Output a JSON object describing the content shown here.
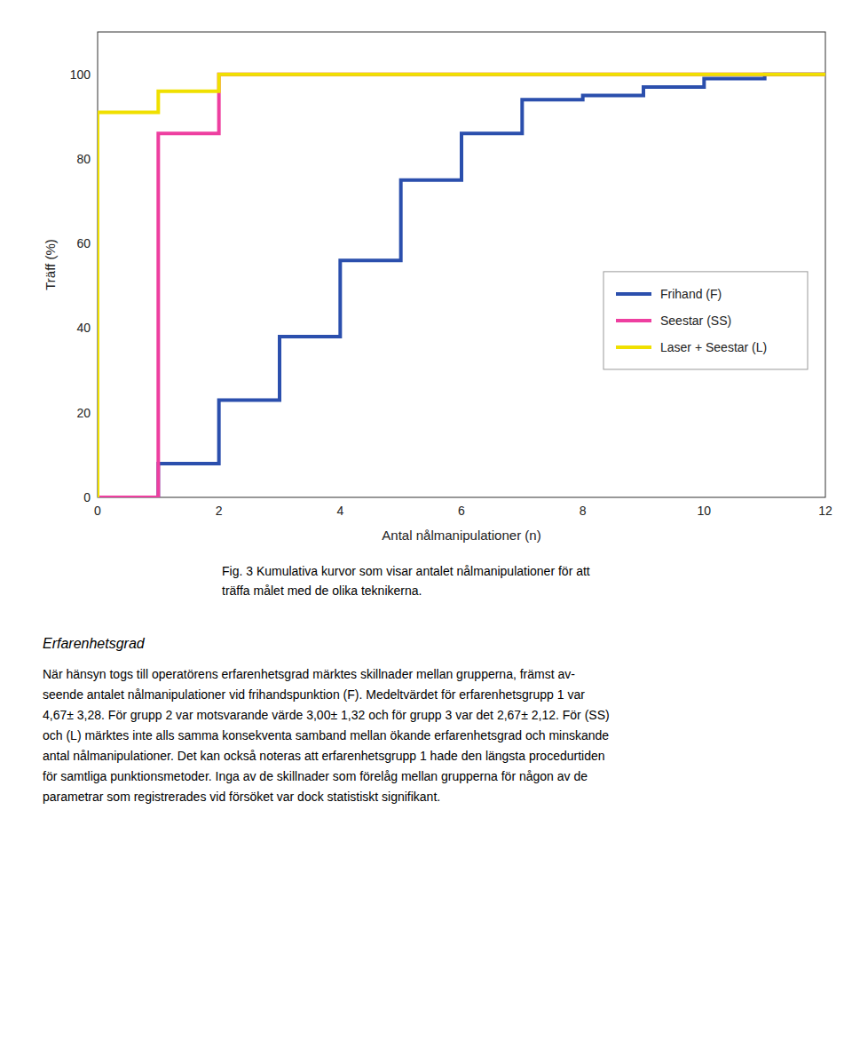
{
  "chart_data": {
    "type": "line",
    "xlabel": "Antal nålmanipulationer (n)",
    "ylabel": "Träff (%)",
    "xlim": [
      0,
      12
    ],
    "ylim": [
      0,
      110
    ],
    "xticks": [
      0,
      2,
      4,
      6,
      8,
      10,
      12
    ],
    "yticks": [
      0,
      20,
      40,
      60,
      80,
      100
    ],
    "grid": false,
    "legend": "right",
    "series": [
      {
        "name": "Frihand (F)",
        "color": "#2b4fad",
        "x": [
          0,
          1,
          1,
          2,
          2,
          3,
          3,
          4,
          4,
          5,
          5,
          6,
          6,
          7,
          7,
          8,
          8,
          9,
          9,
          10,
          10,
          11,
          11,
          12
        ],
        "values": [
          0,
          0,
          8,
          8,
          23,
          23,
          38,
          38,
          56,
          56,
          75,
          75,
          86,
          86,
          94,
          94,
          95,
          95,
          97,
          97,
          99,
          99,
          100,
          100
        ]
      },
      {
        "name": "Seestar (SS)",
        "color": "#ee3fa0",
        "x": [
          0,
          1,
          1,
          2,
          2,
          12
        ],
        "values": [
          0,
          0,
          86,
          86,
          100,
          100
        ]
      },
      {
        "name": "Laser + Seestar (L)",
        "color": "#f0e000",
        "x": [
          0,
          0,
          1,
          1,
          2,
          2,
          12
        ],
        "values": [
          0,
          91,
          91,
          96,
          96,
          100,
          100
        ]
      }
    ]
  },
  "caption": [
    "Fig. 3 Kumulativa kurvor som visar antalet nålmanipulationer för att",
    "träffa målet med de olika teknikerna."
  ],
  "section_title": "Erfarenhetsgrad",
  "body_text": [
    "När hänsyn togs till operatörens erfarenhetsgrad märktes skillnader mellan grupperna, främst av-",
    "seende antalet nålmanipulationer vid frihandspunktion (F). Medeltvärdet för erfarenhetsgrupp 1 var",
    "4,67± 3,28. För grupp 2 var motsvarande värde 3,00± 1,32 och för grupp 3 var det 2,67± 2,12. För (SS)",
    "och (L) märktes inte alls samma konsekventa samband mellan ökande erfarenhetsgrad och minskande",
    "antal nålmanipulationer. Det kan också noteras att erfarenhetsgrupp 1 hade den längsta procedurtiden",
    "för samtliga punktionsmetoder. Inga av de skillnader som förelåg mellan grupperna för någon av de",
    "parametrar som registrerades vid försöket var dock statistiskt signifikant."
  ]
}
